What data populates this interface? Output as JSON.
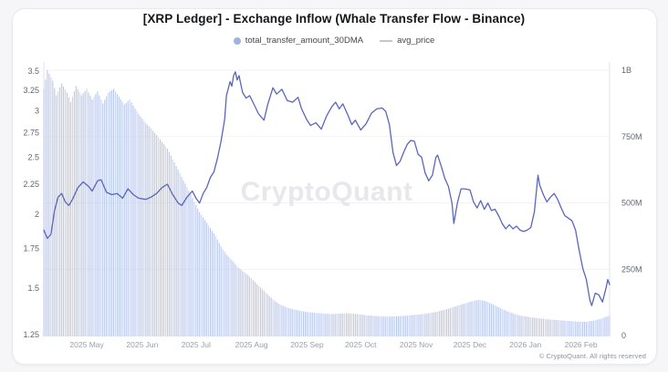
{
  "title": "[XRP Ledger] - Exchange Inflow (Whale Transfer Flow - Binance)",
  "watermark": "CryptoQuant",
  "copyright": "© CryptoQuant. All rights reserved",
  "legend": {
    "position": "top",
    "items": [
      {
        "label": "total_transfer_amount_30DMA",
        "swatch": "dot",
        "color": "#9fb2e2"
      },
      {
        "label": "avg_price",
        "swatch": "line",
        "color": "#c6c6cc"
      }
    ]
  },
  "colors": {
    "bar": "#b6c4ea",
    "line": "#5a66bb",
    "grid": "#f1f2f5",
    "axis_line": "#e2e3e8",
    "axis_text": "#5f6672",
    "month_text": "#999ea8",
    "watermark": "#e7e7ec",
    "card_bg": "#ffffff"
  },
  "chart_data": {
    "type": "bar",
    "overlay": "line",
    "title": "[XRP Ledger] - Exchange Inflow (Whale Transfer Flow - Binance)",
    "grid": "horizontal-faint",
    "legend_position": "top",
    "x_range": [
      "2025-04-07",
      "2026-02-17"
    ],
    "x_ticks": [
      {
        "label": "2025 May",
        "date": "2025-05-01"
      },
      {
        "label": "2025 Jun",
        "date": "2025-06-01"
      },
      {
        "label": "2025 Jul",
        "date": "2025-07-01"
      },
      {
        "label": "2025 Aug",
        "date": "2025-08-01"
      },
      {
        "label": "2025 Sep",
        "date": "2025-09-01"
      },
      {
        "label": "2025 Oct",
        "date": "2025-10-01"
      },
      {
        "label": "2025 Nov",
        "date": "2025-11-01"
      },
      {
        "label": "2025 Dec",
        "date": "2025-12-01"
      },
      {
        "label": "2026 Jan",
        "date": "2026-01-01"
      },
      {
        "label": "2026 Feb",
        "date": "2026-02-01"
      }
    ],
    "left_axis": {
      "series": "avg_price",
      "scale": "log",
      "range": [
        1.25,
        3.5
      ],
      "ticks": [
        {
          "label": "3.5",
          "value": 3.5
        },
        {
          "label": "3.25",
          "value": 3.25
        },
        {
          "label": "3",
          "value": 3
        },
        {
          "label": "2.75",
          "value": 2.75
        },
        {
          "label": "2.5",
          "value": 2.5
        },
        {
          "label": "2.25",
          "value": 2.25
        },
        {
          "label": "2",
          "value": 2
        },
        {
          "label": "1.75",
          "value": 1.75
        },
        {
          "label": "1.5",
          "value": 1.5
        },
        {
          "label": "1.25",
          "value": 1.25
        }
      ]
    },
    "right_axis": {
      "series": "total_transfer_amount_30DMA",
      "scale": "linear",
      "unit": "XRP",
      "range_millions": [
        0,
        1000
      ],
      "ticks": [
        {
          "label": "1B",
          "value": 1000
        },
        {
          "label": "750M",
          "value": 750
        },
        {
          "label": "500M",
          "value": 500
        },
        {
          "label": "250M",
          "value": 250
        },
        {
          "label": "0",
          "value": 0
        }
      ]
    },
    "series": [
      {
        "name": "total_transfer_amount_30DMA",
        "type": "bar",
        "axis": "right",
        "frequency": "daily",
        "unit": "millions_of_XRP",
        "note": "daily bars; envelope sampled from chart, values in millions (1000 = 1B)",
        "envelope": [
          [
            "2025-04-07",
            930
          ],
          [
            "2025-04-09",
            1000
          ],
          [
            "2025-04-12",
            960
          ],
          [
            "2025-04-14",
            905
          ],
          [
            "2025-04-17",
            950
          ],
          [
            "2025-04-20",
            915
          ],
          [
            "2025-04-22",
            880
          ],
          [
            "2025-04-25",
            940
          ],
          [
            "2025-04-28",
            905
          ],
          [
            "2025-05-01",
            930
          ],
          [
            "2025-05-04",
            890
          ],
          [
            "2025-05-07",
            920
          ],
          [
            "2025-05-10",
            875
          ],
          [
            "2025-05-13",
            915
          ],
          [
            "2025-05-16",
            930
          ],
          [
            "2025-05-19",
            900
          ],
          [
            "2025-05-22",
            870
          ],
          [
            "2025-05-25",
            890
          ],
          [
            "2025-05-28",
            855
          ],
          [
            "2025-05-31",
            825
          ],
          [
            "2025-06-03",
            800
          ],
          [
            "2025-06-06",
            780
          ],
          [
            "2025-06-09",
            755
          ],
          [
            "2025-06-12",
            730
          ],
          [
            "2025-06-15",
            705
          ],
          [
            "2025-06-18",
            665
          ],
          [
            "2025-06-21",
            625
          ],
          [
            "2025-06-24",
            585
          ],
          [
            "2025-06-27",
            545
          ],
          [
            "2025-06-30",
            505
          ],
          [
            "2025-07-03",
            465
          ],
          [
            "2025-07-06",
            435
          ],
          [
            "2025-07-09",
            405
          ],
          [
            "2025-07-12",
            375
          ],
          [
            "2025-07-15",
            335
          ],
          [
            "2025-07-18",
            305
          ],
          [
            "2025-07-21",
            285
          ],
          [
            "2025-07-24",
            260
          ],
          [
            "2025-07-27",
            243
          ],
          [
            "2025-07-30",
            228
          ],
          [
            "2025-08-02",
            208
          ],
          [
            "2025-08-05",
            188
          ],
          [
            "2025-08-08",
            168
          ],
          [
            "2025-08-11",
            148
          ],
          [
            "2025-08-14",
            130
          ],
          [
            "2025-08-17",
            117
          ],
          [
            "2025-08-20",
            108
          ],
          [
            "2025-08-23",
            101
          ],
          [
            "2025-08-26",
            96
          ],
          [
            "2025-08-29",
            92
          ],
          [
            "2025-09-02",
            88
          ],
          [
            "2025-09-06",
            85
          ],
          [
            "2025-09-10",
            83
          ],
          [
            "2025-09-15",
            81
          ],
          [
            "2025-09-20",
            83
          ],
          [
            "2025-09-25",
            84
          ],
          [
            "2025-09-30",
            80
          ],
          [
            "2025-10-05",
            76
          ],
          [
            "2025-10-10",
            73
          ],
          [
            "2025-10-15",
            71
          ],
          [
            "2025-10-20",
            72
          ],
          [
            "2025-10-25",
            74
          ],
          [
            "2025-10-30",
            77
          ],
          [
            "2025-11-04",
            80
          ],
          [
            "2025-11-08",
            84
          ],
          [
            "2025-11-12",
            89
          ],
          [
            "2025-11-16",
            96
          ],
          [
            "2025-11-20",
            103
          ],
          [
            "2025-11-24",
            112
          ],
          [
            "2025-11-28",
            121
          ],
          [
            "2025-12-02",
            129
          ],
          [
            "2025-12-06",
            135
          ],
          [
            "2025-12-10",
            129
          ],
          [
            "2025-12-14",
            117
          ],
          [
            "2025-12-18",
            103
          ],
          [
            "2025-12-22",
            91
          ],
          [
            "2025-12-26",
            81
          ],
          [
            "2025-12-30",
            74
          ],
          [
            "2026-01-03",
            70
          ],
          [
            "2026-01-07",
            66
          ],
          [
            "2026-01-11",
            63
          ],
          [
            "2026-01-15",
            60
          ],
          [
            "2026-01-19",
            58
          ],
          [
            "2026-01-23",
            56
          ],
          [
            "2026-01-27",
            54
          ],
          [
            "2026-01-31",
            52
          ],
          [
            "2026-02-04",
            52
          ],
          [
            "2026-02-08",
            56
          ],
          [
            "2026-02-11",
            61
          ],
          [
            "2026-02-14",
            68
          ],
          [
            "2026-02-17",
            76
          ]
        ]
      },
      {
        "name": "avg_price",
        "type": "line",
        "axis": "left",
        "unit": "USD",
        "points": [
          [
            "2025-04-07",
            1.88
          ],
          [
            "2025-04-09",
            1.82
          ],
          [
            "2025-04-11",
            1.85
          ],
          [
            "2025-04-13",
            2.03
          ],
          [
            "2025-04-15",
            2.14
          ],
          [
            "2025-04-17",
            2.17
          ],
          [
            "2025-04-19",
            2.1
          ],
          [
            "2025-04-21",
            2.07
          ],
          [
            "2025-04-23",
            2.12
          ],
          [
            "2025-04-26",
            2.22
          ],
          [
            "2025-04-29",
            2.27
          ],
          [
            "2025-05-02",
            2.23
          ],
          [
            "2025-05-04",
            2.19
          ],
          [
            "2025-05-07",
            2.28
          ],
          [
            "2025-05-09",
            2.29
          ],
          [
            "2025-05-12",
            2.18
          ],
          [
            "2025-05-15",
            2.16
          ],
          [
            "2025-05-18",
            2.17
          ],
          [
            "2025-05-21",
            2.13
          ],
          [
            "2025-05-24",
            2.21
          ],
          [
            "2025-05-27",
            2.16
          ],
          [
            "2025-05-30",
            2.13
          ],
          [
            "2025-06-03",
            2.12
          ],
          [
            "2025-06-06",
            2.14
          ],
          [
            "2025-06-09",
            2.17
          ],
          [
            "2025-06-12",
            2.22
          ],
          [
            "2025-06-15",
            2.25
          ],
          [
            "2025-06-18",
            2.16
          ],
          [
            "2025-06-21",
            2.09
          ],
          [
            "2025-06-23",
            2.07
          ],
          [
            "2025-06-26",
            2.14
          ],
          [
            "2025-06-29",
            2.19
          ],
          [
            "2025-07-01",
            2.13
          ],
          [
            "2025-07-03",
            2.09
          ],
          [
            "2025-07-05",
            2.17
          ],
          [
            "2025-07-07",
            2.22
          ],
          [
            "2025-07-09",
            2.31
          ],
          [
            "2025-07-11",
            2.36
          ],
          [
            "2025-07-13",
            2.49
          ],
          [
            "2025-07-15",
            2.66
          ],
          [
            "2025-07-17",
            2.9
          ],
          [
            "2025-07-18",
            3.18
          ],
          [
            "2025-07-20",
            3.36
          ],
          [
            "2025-07-21",
            3.3
          ],
          [
            "2025-07-22",
            3.44
          ],
          [
            "2025-07-23",
            3.49
          ],
          [
            "2025-07-24",
            3.38
          ],
          [
            "2025-07-25",
            3.44
          ],
          [
            "2025-07-27",
            3.22
          ],
          [
            "2025-07-29",
            3.15
          ],
          [
            "2025-07-31",
            3.18
          ],
          [
            "2025-08-02",
            3.09
          ],
          [
            "2025-08-05",
            2.96
          ],
          [
            "2025-08-08",
            2.89
          ],
          [
            "2025-08-10",
            3.07
          ],
          [
            "2025-08-13",
            3.28
          ],
          [
            "2025-08-15",
            3.2
          ],
          [
            "2025-08-18",
            3.26
          ],
          [
            "2025-08-21",
            3.12
          ],
          [
            "2025-08-24",
            3.1
          ],
          [
            "2025-08-27",
            3.16
          ],
          [
            "2025-08-29",
            3.02
          ],
          [
            "2025-09-01",
            2.89
          ],
          [
            "2025-09-03",
            2.83
          ],
          [
            "2025-09-06",
            2.86
          ],
          [
            "2025-09-09",
            2.79
          ],
          [
            "2025-09-12",
            2.94
          ],
          [
            "2025-09-15",
            3.05
          ],
          [
            "2025-09-17",
            3.1
          ],
          [
            "2025-09-19",
            3.02
          ],
          [
            "2025-09-21",
            3.08
          ],
          [
            "2025-09-24",
            2.94
          ],
          [
            "2025-09-26",
            2.84
          ],
          [
            "2025-09-28",
            2.89
          ],
          [
            "2025-10-01",
            2.78
          ],
          [
            "2025-10-04",
            2.85
          ],
          [
            "2025-10-07",
            2.97
          ],
          [
            "2025-10-10",
            3.02
          ],
          [
            "2025-10-13",
            3.03
          ],
          [
            "2025-10-15",
            2.99
          ],
          [
            "2025-10-17",
            2.84
          ],
          [
            "2025-10-19",
            2.55
          ],
          [
            "2025-10-21",
            2.42
          ],
          [
            "2025-10-23",
            2.46
          ],
          [
            "2025-10-25",
            2.55
          ],
          [
            "2025-10-27",
            2.63
          ],
          [
            "2025-10-29",
            2.67
          ],
          [
            "2025-10-31",
            2.66
          ],
          [
            "2025-11-02",
            2.53
          ],
          [
            "2025-11-04",
            2.5
          ],
          [
            "2025-11-06",
            2.35
          ],
          [
            "2025-11-08",
            2.28
          ],
          [
            "2025-11-10",
            2.33
          ],
          [
            "2025-11-12",
            2.5
          ],
          [
            "2025-11-13",
            2.52
          ],
          [
            "2025-11-15",
            2.41
          ],
          [
            "2025-11-17",
            2.3
          ],
          [
            "2025-11-19",
            2.23
          ],
          [
            "2025-11-21",
            2.09
          ],
          [
            "2025-11-22",
            1.93
          ],
          [
            "2025-11-24",
            2.09
          ],
          [
            "2025-11-26",
            2.21
          ],
          [
            "2025-11-28",
            2.21
          ],
          [
            "2025-12-01",
            2.2
          ],
          [
            "2025-12-03",
            2.1
          ],
          [
            "2025-12-05",
            2.05
          ],
          [
            "2025-12-07",
            2.11
          ],
          [
            "2025-12-09",
            2.04
          ],
          [
            "2025-12-11",
            2.09
          ],
          [
            "2025-12-13",
            2.03
          ],
          [
            "2025-12-15",
            2.04
          ],
          [
            "2025-12-17",
            1.99
          ],
          [
            "2025-12-19",
            1.93
          ],
          [
            "2025-12-21",
            1.89
          ],
          [
            "2025-12-23",
            1.92
          ],
          [
            "2025-12-25",
            1.89
          ],
          [
            "2025-12-27",
            1.91
          ],
          [
            "2025-12-29",
            1.88
          ],
          [
            "2025-12-31",
            1.87
          ],
          [
            "2026-01-02",
            1.88
          ],
          [
            "2026-01-04",
            1.9
          ],
          [
            "2026-01-06",
            2.02
          ],
          [
            "2026-01-08",
            2.33
          ],
          [
            "2026-01-09",
            2.24
          ],
          [
            "2026-01-11",
            2.16
          ],
          [
            "2026-01-13",
            2.1
          ],
          [
            "2026-01-15",
            2.14
          ],
          [
            "2026-01-17",
            2.17
          ],
          [
            "2026-01-19",
            2.12
          ],
          [
            "2026-01-21",
            2.05
          ],
          [
            "2026-01-23",
            1.99
          ],
          [
            "2026-01-25",
            1.97
          ],
          [
            "2026-01-27",
            1.95
          ],
          [
            "2026-01-29",
            1.88
          ],
          [
            "2026-01-31",
            1.74
          ],
          [
            "2026-02-02",
            1.62
          ],
          [
            "2026-02-04",
            1.55
          ],
          [
            "2026-02-06",
            1.43
          ],
          [
            "2026-02-07",
            1.4
          ],
          [
            "2026-02-09",
            1.47
          ],
          [
            "2026-02-11",
            1.46
          ],
          [
            "2026-02-13",
            1.42
          ],
          [
            "2026-02-15",
            1.5
          ],
          [
            "2026-02-16",
            1.55
          ],
          [
            "2026-02-17",
            1.52
          ]
        ]
      }
    ]
  }
}
